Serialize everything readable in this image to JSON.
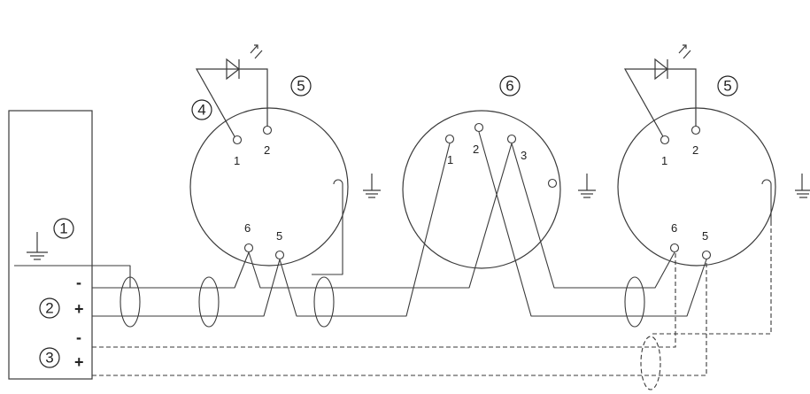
{
  "callouts": {
    "c1": "1",
    "c2": "2",
    "c3": "3",
    "c4": "4",
    "c5a": "5",
    "c5b": "5",
    "c6": "6"
  },
  "panel": {
    "minus_a": "-",
    "plus_a": "+",
    "minus_b": "-",
    "plus_b": "+"
  },
  "detector_left": {
    "t1": "1",
    "t2": "2",
    "t5": "5",
    "t6": "6"
  },
  "base_middle": {
    "t1": "1",
    "t2": "2",
    "t3": "3"
  },
  "detector_right": {
    "t1": "1",
    "t2": "2",
    "t5": "5",
    "t6": "6"
  },
  "icons": [
    "ground-icon",
    "led-icon",
    "ferrite-core-icon"
  ]
}
